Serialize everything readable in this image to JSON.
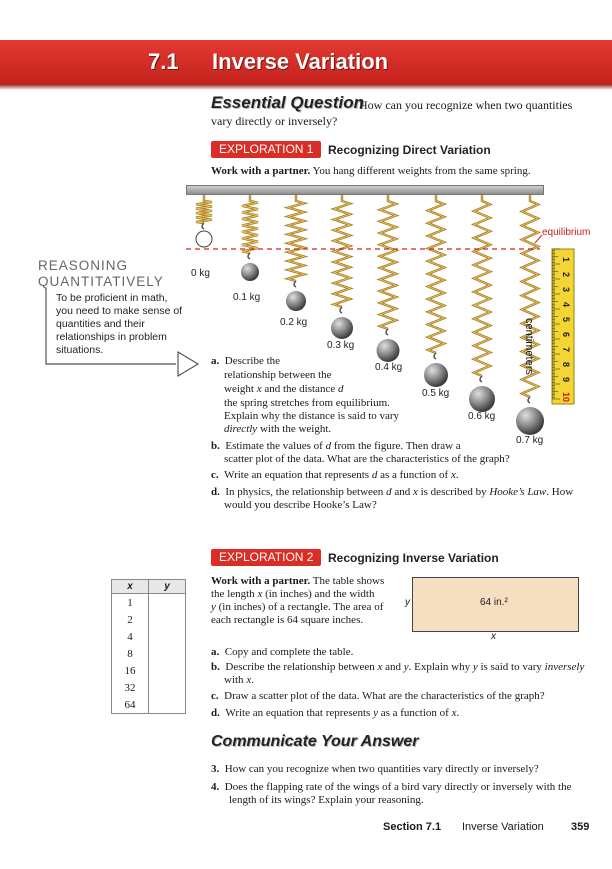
{
  "header": {
    "section_number": "7.1",
    "title": "Inverse Variation"
  },
  "essential_question": {
    "label": "Essential Question",
    "question_line1": "How can you recognize when two quantities",
    "question_line2": "vary directly or inversely?"
  },
  "exploration1": {
    "badge": "EXPLORATION 1",
    "title": "Recognizing Direct Variation",
    "intro_bold": "Work with a partner.",
    "intro_rest": "You hang different weights from the same spring.",
    "weights": [
      "0 kg",
      "0.1 kg",
      "0.2 kg",
      "0.3 kg",
      "0.4 kg",
      "0.5 kg",
      "0.6 kg",
      "0.7 kg"
    ],
    "equilibrium_label": "equilibrium",
    "ruler_label": "centimeters",
    "ruler_numbers": [
      "1",
      "2",
      "3",
      "4",
      "5",
      "6",
      "7",
      "8",
      "9",
      "10"
    ],
    "a_lines": [
      "a.  Describe the",
      "relationship between the",
      "distance d",
      "the spring stretches from equilibrium.",
      "Explain why the distance is said to vary",
      "with the weight."
    ],
    "a_weight": "weight x and the",
    "a_directly": "directly",
    "b_line1": "b.  Estimate the values of d from the figure. Then draw a",
    "b_line2": "scatter plot of the data. What are the characteristics of the graph?",
    "c_line": "c.  Write an equation that represents d as a function of x.",
    "d_line1": "d.  In physics, the relationship between d and x is described by",
    "d_hooke": "Hooke’s Law",
    "d_line1_end": ". How",
    "d_line2": "would you describe Hooke’s Law?"
  },
  "sidebar": {
    "title_line1": "REASONING",
    "title_line2": "QUANTITATIVELY",
    "text": "To be proficient in math, you need to make sense of quantities and their relationships in problem situations."
  },
  "exploration2": {
    "badge": "EXPLORATION 2",
    "title": "Recognizing Inverse Variation",
    "intro_bold": "Work with a partner.",
    "intro_lines": [
      "The table shows",
      "the length x (in inches) and the width",
      "y (in inches) of a rectangle. The area of",
      "each rectangle is 64 square inches."
    ],
    "table_headers": [
      "x",
      "y"
    ],
    "table_x": [
      "1",
      "2",
      "4",
      "8",
      "16",
      "32",
      "64"
    ],
    "rect_area": "64 in.²",
    "rect_y": "y",
    "rect_x": "x",
    "a_line": "a.  Copy and complete the table.",
    "b_line1": "b.  Describe the relationship between x and y. Explain why y is said to vary",
    "b_inversely": "inversely",
    "b_line2": "with x.",
    "c_line": "c.  Draw a scatter plot of the data. What are the characteristics of the graph?",
    "d_line": "d.  Write an equation that represents y as a function of x."
  },
  "communicate": {
    "title": "Communicate Your Answer",
    "q3_num": "3.",
    "q3": "How can you recognize when two quantities vary directly or inversely?",
    "q4_num": "4.",
    "q4_line1": "Does the flapping rate of the wings of a bird vary directly or inversely with the",
    "q4_line2": "length of its wings? Explain your reasoning."
  },
  "footer": {
    "section": "Section 7.1",
    "title": "Inverse Variation",
    "page": "359"
  }
}
